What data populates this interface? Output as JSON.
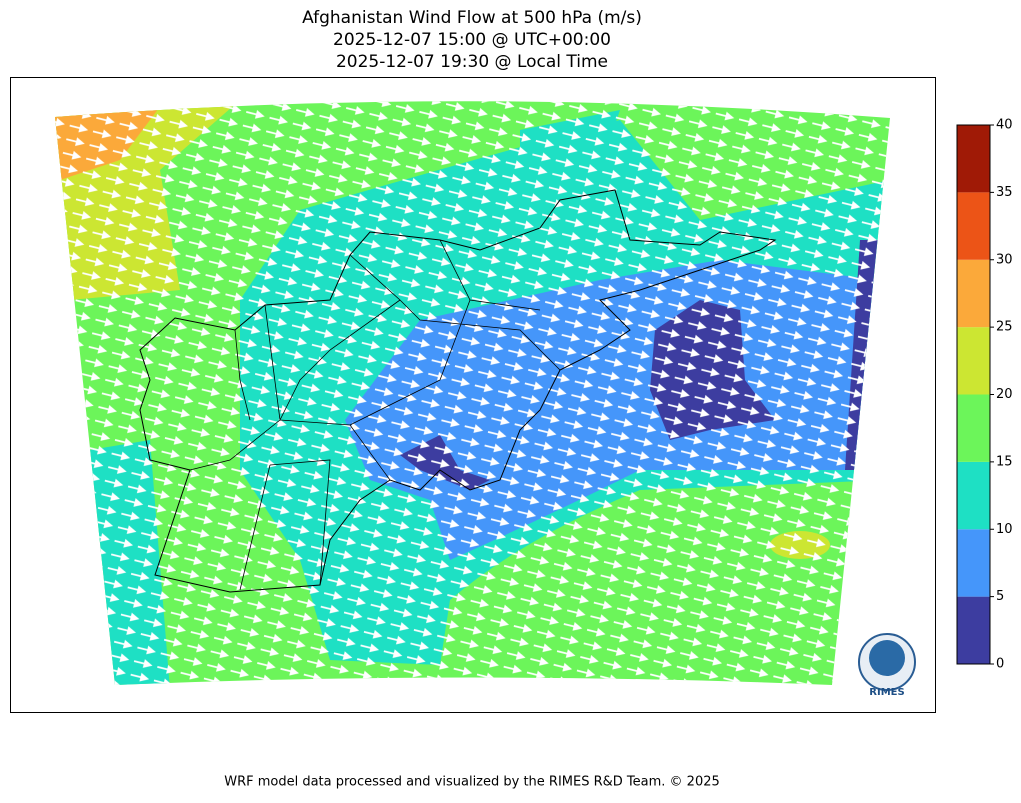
{
  "title": [
    "Afghanistan Wind Flow at 500 hPa (m/s)",
    "2025-12-07 15:00 @ UTC+00:00",
    "2025-12-07 19:30 @ Local Time"
  ],
  "colorbar": {
    "ticks": [
      0,
      5,
      10,
      15,
      20,
      25,
      30,
      35,
      40
    ],
    "colors": [
      "#3d3da0",
      "#4596fa",
      "#1ee0c4",
      "#6cf55a",
      "#cce632",
      "#fba93a",
      "#ec5417",
      "#a01a06"
    ]
  },
  "logo": {
    "label": "RIMES"
  },
  "footer": "WRF model data processed and visualized by the RIMES R&D Team. © 2025"
}
